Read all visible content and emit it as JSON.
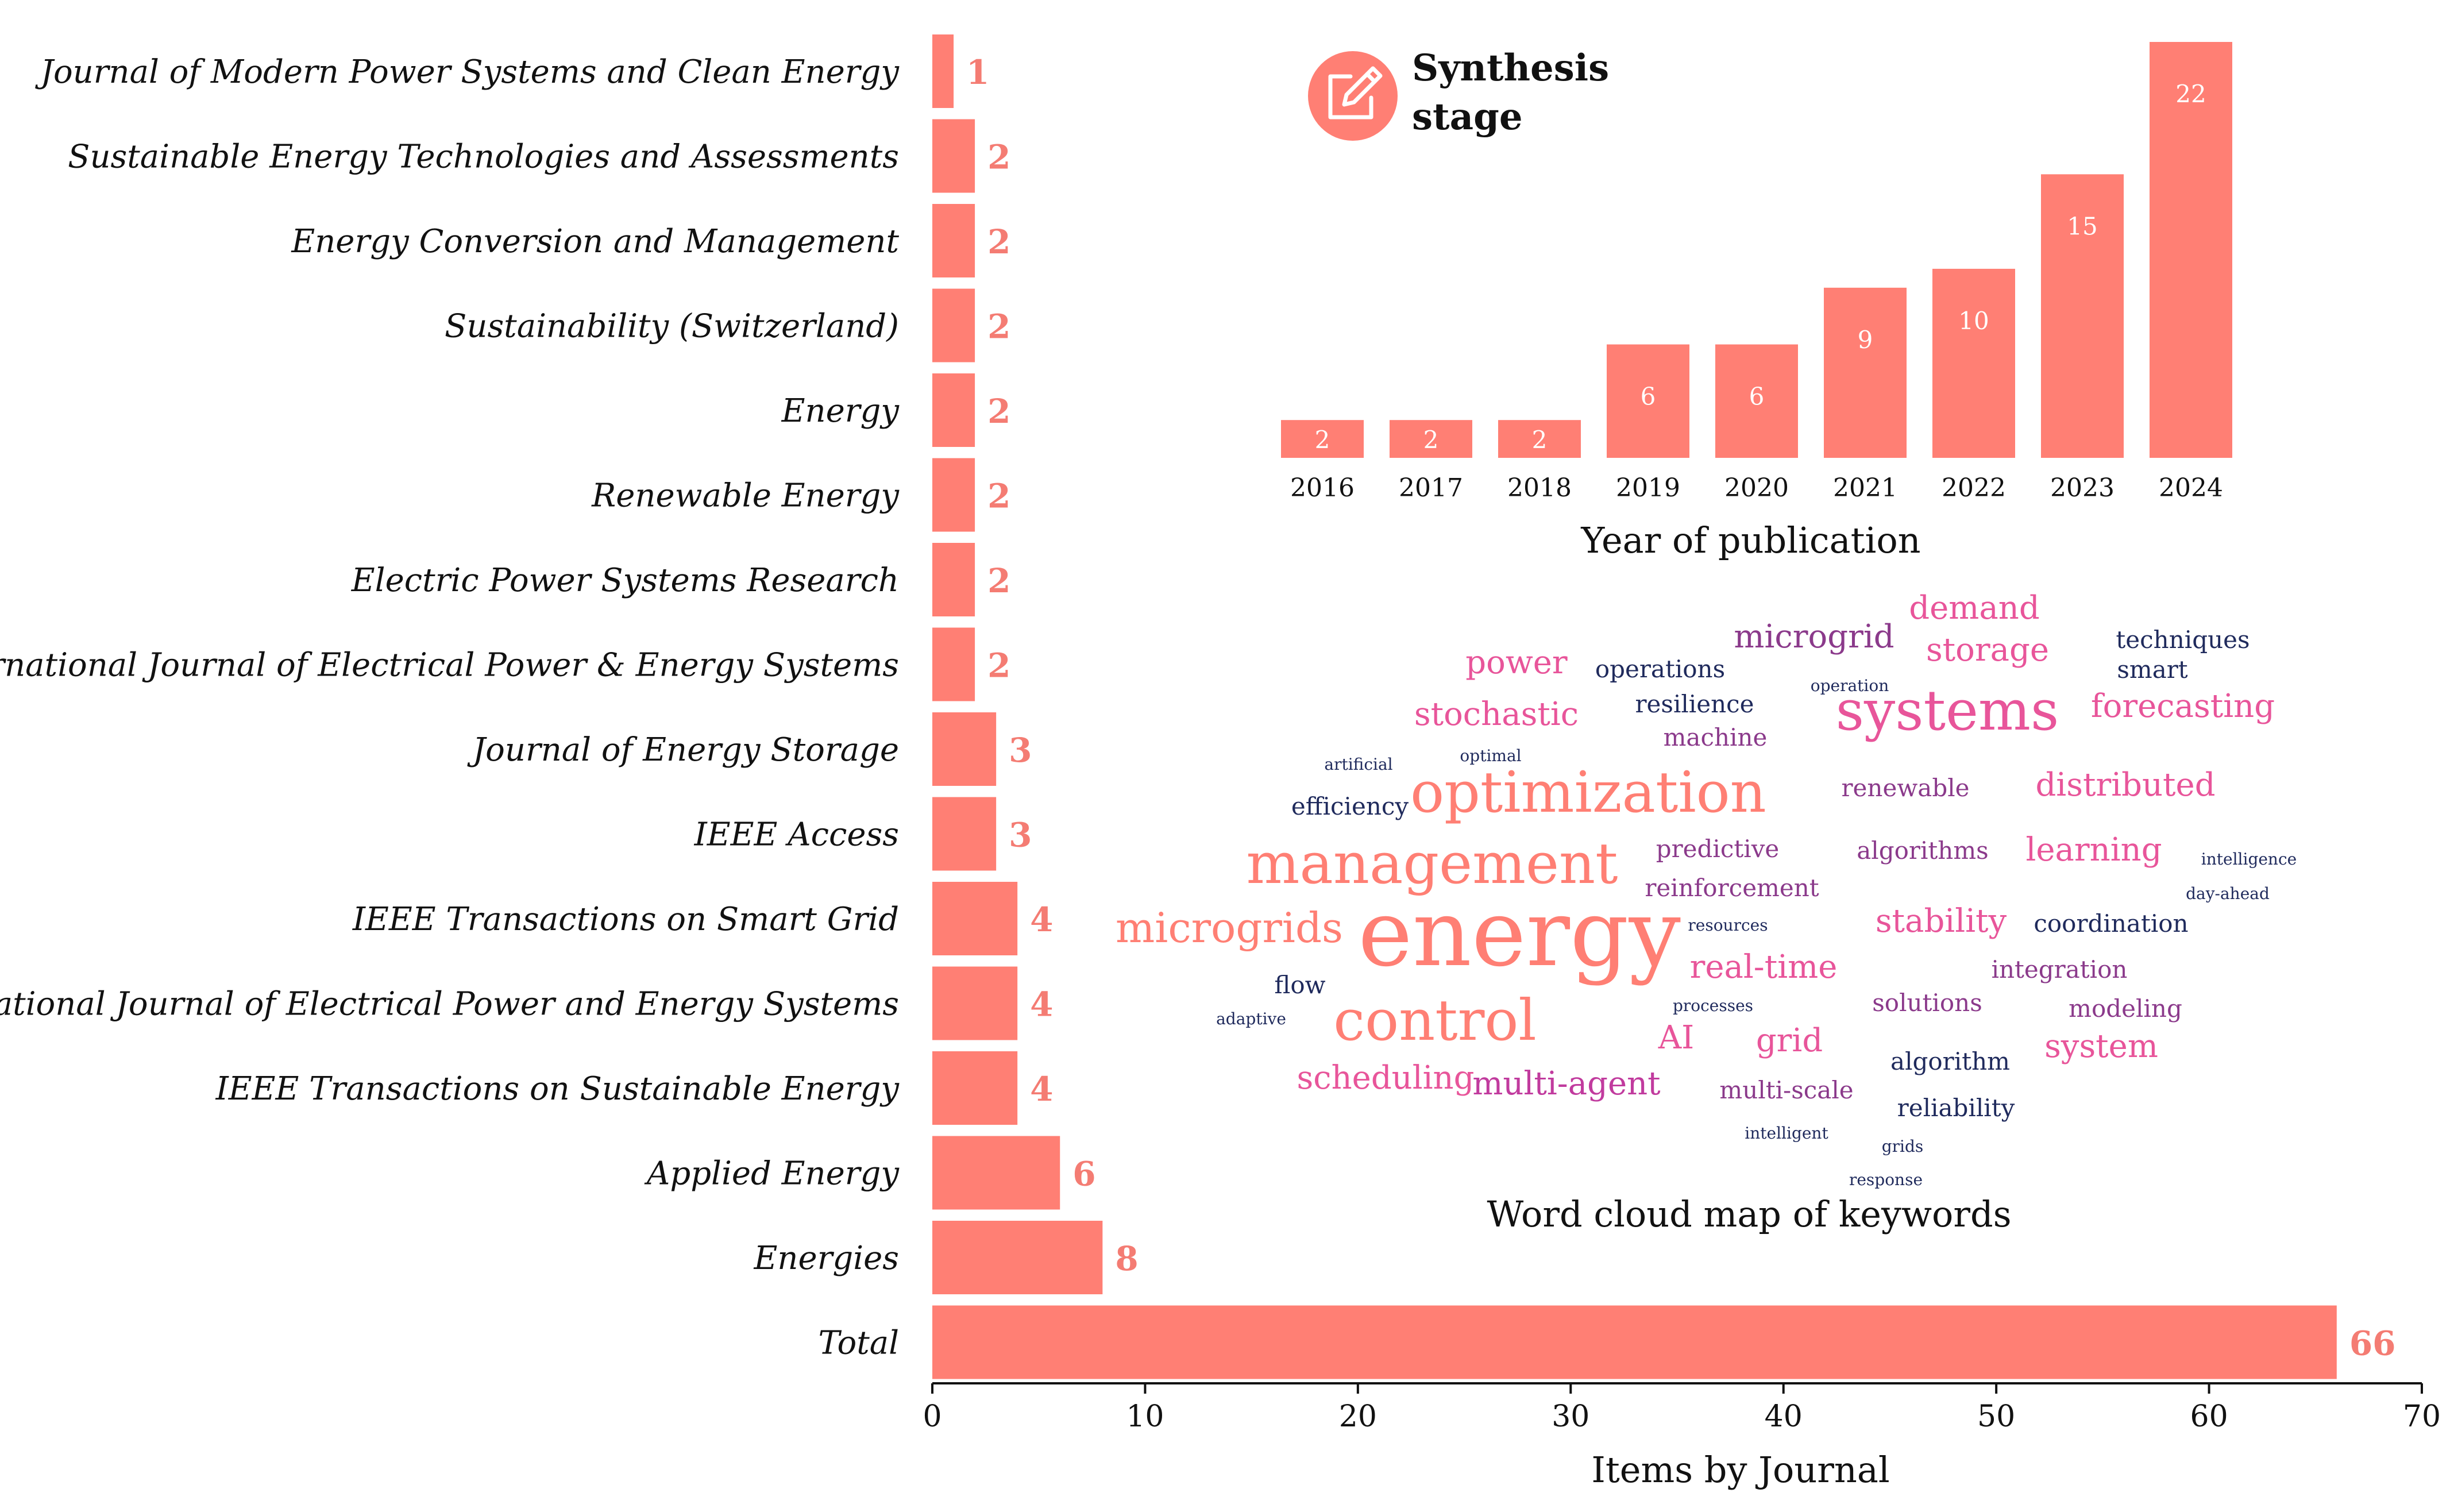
{
  "colors": {
    "bar": "#ff7f74",
    "label": "#f47c73",
    "axis": "#111111",
    "wc_navy": "#1f2a5c",
    "wc_purple": "#8b3a8b",
    "wc_pink": "#e8559a",
    "wc_salmon": "#ff7f74",
    "wc_magenta": "#c13b9e"
  },
  "icon": {
    "name": "edit-note-icon"
  },
  "synthesis": {
    "line1": "Synthesis",
    "line2": "stage"
  },
  "chart_data": [
    {
      "type": "bar",
      "orientation": "horizontal",
      "title": "",
      "xlabel": "Items by Journal",
      "ylabel": "",
      "xlim": [
        0,
        70
      ],
      "xticks": [
        0,
        10,
        20,
        30,
        40,
        50,
        60,
        70
      ],
      "categories": [
        "Journal of Modern Power Systems and Clean Energy",
        "Sustainable Energy Technologies and Assessments",
        "Energy Conversion and Management",
        "Sustainability (Switzerland)",
        "Energy",
        "Renewable Energy",
        "Electric Power Systems Research",
        "International Journal of Electrical Power & Energy Systems",
        "Journal of Energy Storage",
        "IEEE Access",
        "IEEE Transactions on Smart Grid",
        "International Journal of Electrical Power and Energy Systems",
        "IEEE Transactions on Sustainable Energy",
        "Applied Energy",
        "Energies",
        "Total"
      ],
      "values": [
        1,
        2,
        2,
        2,
        2,
        2,
        2,
        2,
        3,
        3,
        4,
        4,
        4,
        6,
        8,
        66
      ]
    },
    {
      "type": "bar",
      "orientation": "vertical",
      "title": "",
      "xlabel": "Year of publication",
      "ylabel": "",
      "ylim": [
        0,
        22
      ],
      "categories": [
        "2016",
        "2017",
        "2018",
        "2019",
        "2020",
        "2021",
        "2022",
        "2023",
        "2024"
      ],
      "values": [
        2,
        2,
        2,
        6,
        6,
        9,
        10,
        15,
        22
      ]
    }
  ],
  "wordcloud": {
    "caption": "Word cloud map of keywords",
    "words": [
      {
        "text": "demand",
        "weight": 3,
        "color": "pink"
      },
      {
        "text": "microgrid",
        "weight": 3,
        "color": "purple"
      },
      {
        "text": "techniques",
        "weight": 2,
        "color": "navy"
      },
      {
        "text": "storage",
        "weight": 3,
        "color": "pink"
      },
      {
        "text": "power",
        "weight": 3,
        "color": "pink"
      },
      {
        "text": "operations",
        "weight": 2,
        "color": "navy"
      },
      {
        "text": "smart",
        "weight": 2,
        "color": "navy"
      },
      {
        "text": "operation",
        "weight": 1,
        "color": "navy"
      },
      {
        "text": "resilience",
        "weight": 2,
        "color": "navy"
      },
      {
        "text": "stochastic",
        "weight": 3,
        "color": "pink"
      },
      {
        "text": "systems",
        "weight": 5,
        "color": "pink"
      },
      {
        "text": "forecasting",
        "weight": 3,
        "color": "pink"
      },
      {
        "text": "machine",
        "weight": 2,
        "color": "purple"
      },
      {
        "text": "artificial",
        "weight": 1,
        "color": "navy"
      },
      {
        "text": "optimal",
        "weight": 1,
        "color": "navy"
      },
      {
        "text": "renewable",
        "weight": 2,
        "color": "purple"
      },
      {
        "text": "distributed",
        "weight": 3,
        "color": "pink"
      },
      {
        "text": "efficiency",
        "weight": 2,
        "color": "navy"
      },
      {
        "text": "optimization",
        "weight": 6,
        "color": "salmon"
      },
      {
        "text": "predictive",
        "weight": 2,
        "color": "purple"
      },
      {
        "text": "algorithms",
        "weight": 2,
        "color": "purple"
      },
      {
        "text": "learning",
        "weight": 3,
        "color": "pink"
      },
      {
        "text": "intelligence",
        "weight": 1,
        "color": "navy"
      },
      {
        "text": "management",
        "weight": 6,
        "color": "salmon"
      },
      {
        "text": "reinforcement",
        "weight": 2,
        "color": "purple"
      },
      {
        "text": "day-ahead",
        "weight": 1,
        "color": "navy"
      },
      {
        "text": "microgrids",
        "weight": 4,
        "color": "salmon"
      },
      {
        "text": "energy",
        "weight": 8,
        "color": "salmon"
      },
      {
        "text": "resources",
        "weight": 1,
        "color": "navy"
      },
      {
        "text": "stability",
        "weight": 3,
        "color": "pink"
      },
      {
        "text": "coordination",
        "weight": 2,
        "color": "navy"
      },
      {
        "text": "real-time",
        "weight": 3,
        "color": "pink"
      },
      {
        "text": "integration",
        "weight": 2,
        "color": "purple"
      },
      {
        "text": "flow",
        "weight": 2,
        "color": "navy"
      },
      {
        "text": "processes",
        "weight": 1,
        "color": "navy"
      },
      {
        "text": "solutions",
        "weight": 2,
        "color": "purple"
      },
      {
        "text": "modeling",
        "weight": 2,
        "color": "purple"
      },
      {
        "text": "adaptive",
        "weight": 1,
        "color": "navy"
      },
      {
        "text": "control",
        "weight": 6,
        "color": "salmon"
      },
      {
        "text": "AI",
        "weight": 3,
        "color": "pink"
      },
      {
        "text": "grid",
        "weight": 3,
        "color": "pink"
      },
      {
        "text": "system",
        "weight": 3,
        "color": "pink"
      },
      {
        "text": "algorithm",
        "weight": 2,
        "color": "navy"
      },
      {
        "text": "scheduling",
        "weight": 3,
        "color": "pink"
      },
      {
        "text": "multi-agent",
        "weight": 3,
        "color": "magenta"
      },
      {
        "text": "multi-scale",
        "weight": 2,
        "color": "purple"
      },
      {
        "text": "reliability",
        "weight": 2,
        "color": "navy"
      },
      {
        "text": "intelligent",
        "weight": 1,
        "color": "navy"
      },
      {
        "text": "grids",
        "weight": 1,
        "color": "navy"
      },
      {
        "text": "response",
        "weight": 1,
        "color": "navy"
      }
    ]
  }
}
